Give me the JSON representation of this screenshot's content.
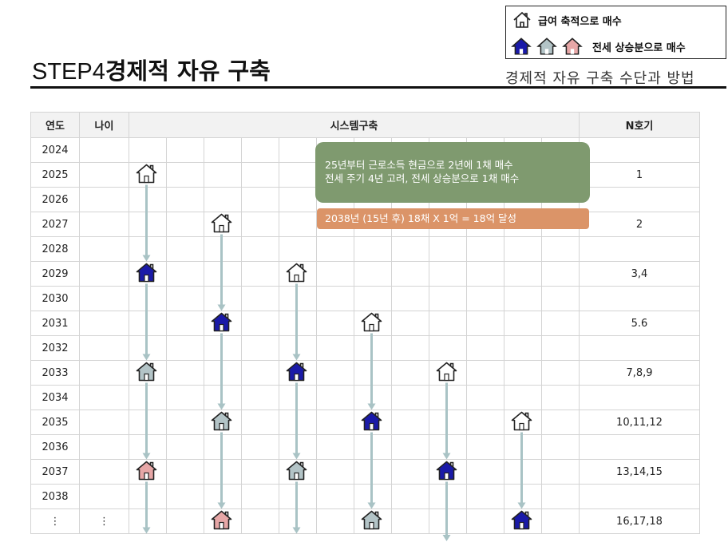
{
  "legend": {
    "salary_label": "급여 축적으로 매수",
    "jeonse_label": "전세 상승분으로 매수"
  },
  "header": {
    "step": "STEP4",
    "title": "경제적 자유 구축",
    "subtitle": "경제적 자유 구축 수단과 방법"
  },
  "table": {
    "headers": {
      "year": "연도",
      "age": "나이",
      "system": "시스템구축",
      "n": "N호기"
    },
    "rows": [
      {
        "year": "2024",
        "age": "",
        "n": ""
      },
      {
        "year": "2025",
        "age": "",
        "n": "1"
      },
      {
        "year": "2026",
        "age": "",
        "n": ""
      },
      {
        "year": "2027",
        "age": "",
        "n": "2"
      },
      {
        "year": "2028",
        "age": "",
        "n": ""
      },
      {
        "year": "2029",
        "age": "",
        "n": "3,4"
      },
      {
        "year": "2030",
        "age": "",
        "n": ""
      },
      {
        "year": "2031",
        "age": "",
        "n": "5.6"
      },
      {
        "year": "2032",
        "age": "",
        "n": ""
      },
      {
        "year": "2033",
        "age": "",
        "n": "7,8,9"
      },
      {
        "year": "2034",
        "age": "",
        "n": ""
      },
      {
        "year": "2035",
        "age": "",
        "n": "10,11,12"
      },
      {
        "year": "2036",
        "age": "",
        "n": ""
      },
      {
        "year": "2037",
        "age": "",
        "n": "13,14,15"
      },
      {
        "year": "2038",
        "age": "",
        "n": ""
      },
      {
        "year": "⋮",
        "age": "⋮",
        "n": "16,17,18"
      }
    ]
  },
  "notes": {
    "green_line1": "25년부터 근로소득 현금으로 2년에 1채 매수",
    "green_line2": "전세 주기 4년 고려, 전세 상승분으로 1채 매수",
    "orange": "2038년 (15년  후) 18채 X 1억 = 18억 달성"
  },
  "colors": {
    "outline_house": "#ffffff",
    "blue_house": "#1a1aa8",
    "gray_house": "#b3c4c7",
    "pink_house": "#e7a7a7",
    "arrow": "#a9c3c5",
    "green_box": "#7f9a6f",
    "orange_box": "#db9468"
  },
  "houses": [
    {
      "col": 0,
      "row": 1,
      "type": "outline"
    },
    {
      "col": 2,
      "row": 3,
      "type": "outline"
    },
    {
      "col": 0,
      "row": 5,
      "type": "blue"
    },
    {
      "col": 4,
      "row": 5,
      "type": "outline"
    },
    {
      "col": 2,
      "row": 7,
      "type": "blue"
    },
    {
      "col": 6,
      "row": 7,
      "type": "outline"
    },
    {
      "col": 0,
      "row": 9,
      "type": "gray"
    },
    {
      "col": 4,
      "row": 9,
      "type": "blue"
    },
    {
      "col": 8,
      "row": 9,
      "type": "outline"
    },
    {
      "col": 2,
      "row": 11,
      "type": "gray"
    },
    {
      "col": 6,
      "row": 11,
      "type": "blue"
    },
    {
      "col": 10,
      "row": 11,
      "type": "outline"
    },
    {
      "col": 0,
      "row": 13,
      "type": "pink"
    },
    {
      "col": 4,
      "row": 13,
      "type": "gray"
    },
    {
      "col": 8,
      "row": 13,
      "type": "blue"
    },
    {
      "col": 2,
      "row": 15,
      "type": "pink"
    },
    {
      "col": 6,
      "row": 15,
      "type": "gray"
    },
    {
      "col": 10,
      "row": 15,
      "type": "blue"
    }
  ],
  "arrows": [
    {
      "col": 0,
      "from": 1,
      "to": 5
    },
    {
      "col": 0,
      "from": 5,
      "to": 9
    },
    {
      "col": 0,
      "from": 9,
      "to": 13
    },
    {
      "col": 0,
      "from": 13,
      "to": 16
    },
    {
      "col": 2,
      "from": 3,
      "to": 7
    },
    {
      "col": 2,
      "from": 7,
      "to": 11
    },
    {
      "col": 2,
      "from": 11,
      "to": 15
    },
    {
      "col": 4,
      "from": 5,
      "to": 9
    },
    {
      "col": 4,
      "from": 9,
      "to": 13
    },
    {
      "col": 4,
      "from": 13,
      "to": 16
    },
    {
      "col": 6,
      "from": 7,
      "to": 11
    },
    {
      "col": 6,
      "from": 11,
      "to": 15
    },
    {
      "col": 8,
      "from": 9,
      "to": 13
    },
    {
      "col": 8,
      "from": 13,
      "to": 17
    },
    {
      "col": 10,
      "from": 11,
      "to": 15
    }
  ]
}
